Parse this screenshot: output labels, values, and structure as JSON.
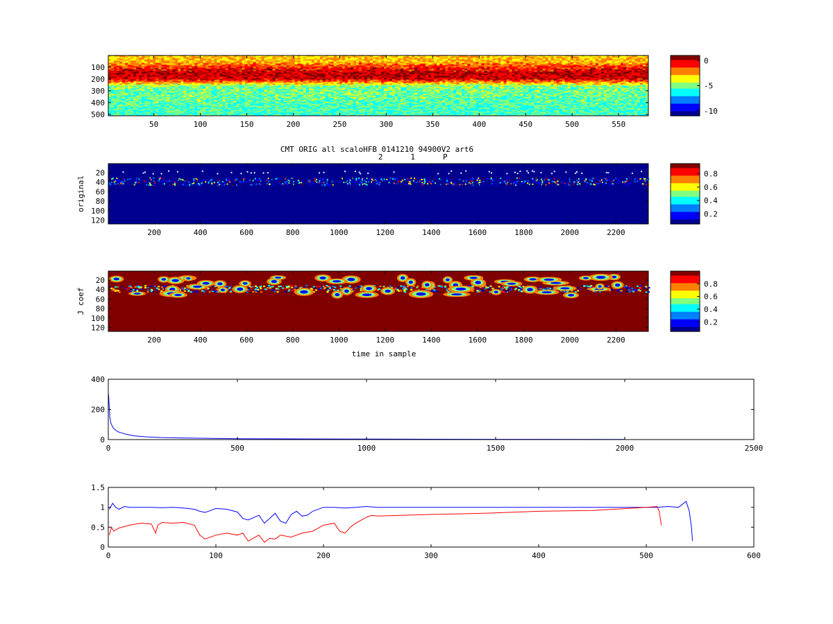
{
  "figure": {
    "title": "CMT ORIG all scaloHFB 0141210 94900V2 art6",
    "markers": [
      {
        "label": "2",
        "x": 1180
      },
      {
        "label": "1",
        "x": 1320
      },
      {
        "label": "P",
        "x": 1460
      }
    ]
  },
  "colors": {
    "jet": [
      "#00008f",
      "#0000ff",
      "#0080ff",
      "#00ffff",
      "#80ff80",
      "#ffff00",
      "#ff8000",
      "#ff0000",
      "#800000"
    ],
    "series_blue": "#0000ff",
    "series_red": "#ff0000"
  },
  "chart_data": [
    {
      "type": "heatmap",
      "description": "scalogram, value band strongest near rows 100-200",
      "xlabel": "",
      "ylabel": "",
      "xlim": [
        1,
        582
      ],
      "ylim": [
        1,
        512
      ],
      "xticks": [
        50,
        100,
        150,
        200,
        250,
        300,
        350,
        400,
        450,
        500,
        550
      ],
      "yticks": [
        100,
        200,
        300,
        400,
        500
      ],
      "colorbar": {
        "range": [
          -11,
          1
        ],
        "ticks": [
          0,
          -5,
          -10
        ]
      },
      "row_profile": [
        {
          "row": 1,
          "value": -3
        },
        {
          "row": 60,
          "value": -2.5
        },
        {
          "row": 100,
          "value": -1
        },
        {
          "row": 150,
          "value": 0.3
        },
        {
          "row": 200,
          "value": 0
        },
        {
          "row": 240,
          "value": -3
        },
        {
          "row": 260,
          "value": -5
        },
        {
          "row": 512,
          "value": -5.8
        }
      ]
    },
    {
      "type": "heatmap",
      "xlabel": "",
      "ylabel": "original",
      "xlim": [
        1,
        2340
      ],
      "ylim": [
        1,
        128
      ],
      "xticks": [
        200,
        400,
        600,
        800,
        1000,
        1200,
        1400,
        1600,
        1800,
        2000,
        2200
      ],
      "yticks": [
        20,
        40,
        60,
        80,
        100,
        120
      ],
      "colorbar": {
        "range": [
          0.05,
          0.95
        ],
        "ticks": [
          0.8,
          0.6,
          0.4,
          0.2
        ]
      },
      "background": 0.05,
      "active_rows": [
        30,
        45
      ]
    },
    {
      "type": "heatmap",
      "xlabel": "time in sample",
      "ylabel": "J coef",
      "xlim": [
        1,
        2340
      ],
      "ylim": [
        1,
        128
      ],
      "xticks": [
        200,
        400,
        600,
        800,
        1000,
        1200,
        1400,
        1600,
        1800,
        2000,
        2200
      ],
      "yticks": [
        20,
        40,
        60,
        80,
        100,
        120
      ],
      "colorbar": {
        "range": [
          0.05,
          1
        ],
        "ticks": [
          0.8,
          0.6,
          0.4,
          0.2
        ]
      },
      "background": 1,
      "active_rows": [
        10,
        55
      ]
    },
    {
      "type": "line",
      "xlim": [
        0,
        2500
      ],
      "ylim": [
        0,
        400
      ],
      "xticks": [
        0,
        500,
        1000,
        1500,
        2000,
        2500
      ],
      "yticks": [
        0,
        200,
        400
      ],
      "series": [
        {
          "x": [
            1,
            3,
            6,
            10,
            15,
            20,
            30,
            40,
            50,
            70,
            100,
            150,
            200,
            300,
            400,
            500,
            600,
            800,
            1000,
            1500,
            2000
          ],
          "y": [
            300,
            240,
            150,
            110,
            90,
            75,
            60,
            50,
            45,
            35,
            25,
            18,
            14,
            10,
            8,
            6,
            5,
            4,
            3,
            2,
            1
          ]
        }
      ]
    },
    {
      "type": "line",
      "xlim": [
        0,
        600
      ],
      "ylim": [
        0,
        1.5
      ],
      "xticks": [
        0,
        100,
        200,
        300,
        400,
        500,
        600
      ],
      "yticks": [
        0,
        0.5,
        1,
        1.5
      ],
      "series": [
        {
          "x": [
            1,
            4,
            7,
            10,
            15,
            20,
            30,
            40,
            50,
            60,
            70,
            80,
            85,
            90,
            95,
            100,
            110,
            120,
            125,
            130,
            140,
            145,
            150,
            155,
            160,
            165,
            170,
            175,
            180,
            185,
            190,
            200,
            210,
            220,
            230,
            240,
            250,
            300,
            350,
            400,
            450,
            500,
            510,
            520,
            530,
            537,
            540,
            542,
            543
          ],
          "y": [
            0.95,
            1.1,
            1.0,
            0.95,
            1.02,
            1.0,
            1.0,
            1.0,
            0.99,
            1.0,
            0.98,
            0.95,
            0.9,
            0.87,
            0.92,
            0.97,
            0.95,
            0.88,
            0.72,
            0.68,
            0.8,
            0.6,
            0.72,
            0.85,
            0.65,
            0.6,
            0.82,
            0.9,
            0.78,
            0.8,
            0.9,
            1.0,
            1.0,
            0.98,
            1.0,
            1.02,
            1.0,
            1.0,
            1.0,
            1.0,
            1.0,
            1.0,
            1.0,
            1.02,
            1.0,
            1.15,
            0.9,
            0.5,
            0.15
          ]
        },
        {
          "x": [
            1,
            3,
            5,
            10,
            20,
            30,
            40,
            44,
            46,
            50,
            60,
            70,
            80,
            85,
            90,
            100,
            110,
            120,
            125,
            130,
            140,
            145,
            150,
            155,
            160,
            170,
            180,
            190,
            200,
            210,
            215,
            220,
            225,
            230,
            240,
            245,
            250,
            300,
            350,
            400,
            450,
            500,
            510,
            512,
            514
          ],
          "y": [
            0.3,
            0.5,
            0.4,
            0.48,
            0.55,
            0.6,
            0.58,
            0.35,
            0.55,
            0.62,
            0.6,
            0.62,
            0.55,
            0.3,
            0.2,
            0.3,
            0.35,
            0.3,
            0.35,
            0.15,
            0.3,
            0.12,
            0.22,
            0.2,
            0.3,
            0.25,
            0.35,
            0.4,
            0.55,
            0.6,
            0.4,
            0.35,
            0.5,
            0.6,
            0.75,
            0.8,
            0.78,
            0.82,
            0.85,
            0.9,
            0.92,
            1.0,
            1.02,
            0.9,
            0.55
          ]
        }
      ]
    }
  ]
}
